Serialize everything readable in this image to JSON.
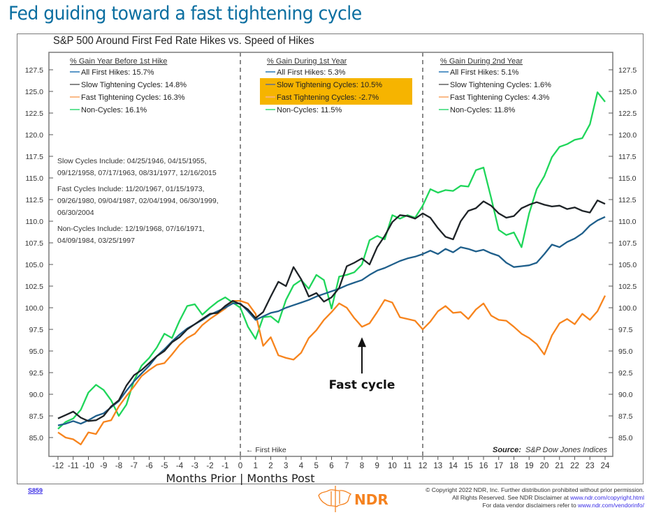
{
  "page": {
    "main_title": "Fed guiding toward a fast tightening cycle",
    "chart_id": "S859",
    "logo_text": "NDR",
    "copyright": {
      "line1": "© Copyright 2022 NDR, Inc. Further distribution prohibited without prior permission.",
      "line2_prefix": "All Rights Reserved. See NDR Disclaimer at ",
      "line2_link": "www.ndr.com/copyright.html",
      "line3_prefix": "For data vendor disclaimers refer to ",
      "line3_link": "www.ndr.com/vendorinfo/"
    }
  },
  "chart_data": {
    "type": "line",
    "title": "S&P 500 Around First Fed Rate Hikes vs. Speed of Hikes",
    "xlabel": "Months Prior | Months Post",
    "ylabel": "",
    "xlim": [
      -12,
      24
    ],
    "ylim": [
      82.5,
      128.5
    ],
    "x_ticks": [
      -12,
      -11,
      -10,
      -9,
      -8,
      -7,
      -6,
      -5,
      -4,
      -3,
      -2,
      -1,
      0,
      1,
      2,
      3,
      4,
      5,
      6,
      7,
      8,
      9,
      10,
      11,
      12,
      13,
      14,
      15,
      16,
      17,
      18,
      19,
      20,
      21,
      22,
      23,
      24
    ],
    "y_ticks": [
      "85.0",
      "87.5",
      "90.0",
      "92.5",
      "95.0",
      "97.5",
      "100.0",
      "102.5",
      "105.0",
      "107.5",
      "110.0",
      "112.5",
      "115.0",
      "117.5",
      "120.0",
      "122.5",
      "125.0",
      "127.5"
    ],
    "y_tick_values": [
      85,
      87.5,
      90,
      92.5,
      95,
      97.5,
      100,
      102.5,
      105,
      107.5,
      110,
      112.5,
      115,
      117.5,
      120,
      122.5,
      125,
      127.5
    ],
    "grid": false,
    "vlines": [
      0,
      12
    ],
    "series_colors": {
      "all": "#1f5f8b",
      "slow": "#1e2327",
      "fast": "#f7841d",
      "non": "#1fd65a"
    },
    "legend_colors": {
      "all": "#4a8cc2",
      "slow": "#7a7a7a",
      "fast": "#f9b37a",
      "non": "#52e08a"
    },
    "legends": [
      {
        "heading": "% Gain Year Before 1st Hike",
        "items": [
          {
            "key": "all",
            "label": "All First Hikes: 15.7%"
          },
          {
            "key": "slow",
            "label": "Slow Tightening Cycles: 14.8%"
          },
          {
            "key": "fast",
            "label": "Fast Tightening Cycles: 16.3%"
          },
          {
            "key": "non",
            "label": "Non-Cycles: 16.1%"
          }
        ]
      },
      {
        "heading": "% Gain During 1st Year",
        "highlight": "#f6b400",
        "items": [
          {
            "key": "all",
            "label": "All First Hikes: 5.3%"
          },
          {
            "key": "slow",
            "label": "Slow Tightening Cycles: 10.5%",
            "highlighted": true
          },
          {
            "key": "fast",
            "label": "Fast Tightening Cycles: -2.7%",
            "highlighted": true
          },
          {
            "key": "non",
            "label": "Non-Cycles: 11.5%"
          }
        ]
      },
      {
        "heading": "% Gain During 2nd Year",
        "items": [
          {
            "key": "all",
            "label": "All First Hikes: 5.1%"
          },
          {
            "key": "slow",
            "label": "Slow Tightening Cycles: 1.6%"
          },
          {
            "key": "fast",
            "label": "Fast Tightening Cycles: 4.3%"
          },
          {
            "key": "non",
            "label": "Non-Cycles: 11.8%"
          }
        ]
      }
    ],
    "notes": [
      [
        "Slow Cycles Include: 04/25/1946, 04/15/1955,",
        "09/12/1958, 07/17/1963, 08/31/1977, 12/16/2015"
      ],
      [
        "Fast Cycles Include: 11/20/1967, 01/15/1973,",
        "09/26/1980, 09/04/1987, 02/04/1994, 06/30/1999,",
        "06/30/2004"
      ],
      [
        "Non-Cycles Include: 12/19/1968, 07/16/1971,",
        "04/09/1984, 03/25/1997"
      ]
    ],
    "annotations": {
      "first_hike": "← First Hike",
      "fast_cycle": "Fast cycle",
      "fast_cycle_x": 8,
      "fast_cycle_y": 97.4,
      "source_label": "Source:",
      "source_value": "S&P Dow Jones Indices"
    },
    "series": [
      {
        "name": "All First Hikes",
        "key": "all",
        "x": [
          -12,
          -11.5,
          -11,
          -10.5,
          -10,
          -9.5,
          -9,
          -8.5,
          -8,
          -7.5,
          -7,
          -6.5,
          -6,
          -5.5,
          -5,
          -4.5,
          -4,
          -3.5,
          -3,
          -2.5,
          -2,
          -1.5,
          -1,
          -0.5,
          0,
          0.5,
          1,
          1.5,
          2,
          2.5,
          3,
          3.5,
          4,
          4.5,
          5,
          5.5,
          6,
          6.5,
          7,
          7.5,
          8,
          8.5,
          9,
          9.5,
          10,
          10.5,
          11,
          11.5,
          12,
          12.5,
          13,
          13.5,
          14,
          14.5,
          15,
          15.5,
          16,
          16.5,
          17,
          17.5,
          18,
          18.5,
          19,
          19.5,
          20,
          20.5,
          21,
          21.5,
          22,
          22.5,
          23,
          23.5,
          24
        ],
        "values": [
          86.4,
          86.6,
          86.9,
          86.6,
          87.0,
          87.5,
          87.8,
          88.5,
          89.2,
          90.4,
          91.5,
          92.4,
          93.3,
          94.4,
          95.2,
          96.1,
          96.9,
          97.6,
          98.1,
          98.6,
          99.2,
          99.6,
          100.0,
          100.5,
          100.5,
          99.6,
          98.6,
          99.0,
          99.4,
          99.6,
          100.0,
          100.3,
          100.6,
          100.9,
          101.3,
          101.6,
          101.9,
          102.2,
          102.6,
          102.9,
          103.2,
          103.8,
          104.3,
          104.6,
          105.0,
          105.4,
          105.7,
          105.9,
          106.2,
          106.6,
          106.2,
          106.8,
          106.4,
          107.0,
          106.8,
          106.5,
          106.7,
          106.3,
          106.0,
          105.2,
          104.7,
          104.8,
          104.9,
          105.2,
          106.2,
          107.3,
          107.0,
          107.6,
          108.0,
          108.6,
          109.5,
          110.1,
          110.5
        ]
      },
      {
        "name": "Slow Tightening Cycles",
        "key": "slow",
        "x": [
          -12,
          -11.5,
          -11,
          -10.5,
          -10,
          -9.5,
          -9,
          -8.5,
          -8,
          -7.5,
          -7,
          -6.5,
          -6,
          -5.5,
          -5,
          -4.5,
          -4,
          -3.5,
          -3,
          -2.5,
          -2,
          -1.5,
          -1,
          -0.5,
          0,
          0.5,
          1,
          1.5,
          2,
          2.5,
          3,
          3.5,
          4,
          4.5,
          5,
          5.5,
          6,
          6.5,
          7,
          7.5,
          8,
          8.5,
          9,
          9.5,
          10,
          10.5,
          11,
          11.5,
          12,
          12.5,
          13,
          13.5,
          14,
          14.5,
          15,
          15.5,
          16,
          16.5,
          17,
          17.5,
          18,
          18.5,
          19,
          19.5,
          20,
          20.5,
          21,
          21.5,
          22,
          22.5,
          23,
          23.5,
          24
        ],
        "values": [
          87.2,
          87.6,
          88.0,
          87.3,
          86.9,
          87.0,
          87.5,
          88.6,
          89.3,
          91.0,
          92.2,
          92.8,
          93.6,
          94.4,
          95.0,
          96.0,
          96.6,
          97.5,
          98.1,
          98.7,
          99.3,
          99.4,
          100.2,
          100.8,
          100.4,
          99.8,
          98.8,
          99.5,
          101.3,
          103.0,
          102.5,
          104.7,
          103.3,
          101.3,
          101.7,
          100.7,
          101.2,
          102.3,
          104.8,
          105.2,
          105.7,
          105.0,
          107.0,
          108.3,
          109.9,
          110.7,
          110.6,
          110.3,
          110.9,
          110.4,
          109.2,
          108.2,
          107.9,
          110.0,
          111.2,
          111.5,
          112.3,
          111.8,
          110.9,
          110.4,
          110.6,
          111.5,
          111.9,
          112.2,
          111.9,
          111.7,
          111.8,
          111.4,
          111.6,
          111.2,
          111.0,
          112.4,
          112.0
        ]
      },
      {
        "name": "Fast Tightening Cycles",
        "key": "fast",
        "x": [
          -12,
          -11.5,
          -11,
          -10.5,
          -10,
          -9.5,
          -9,
          -8.5,
          -8,
          -7.5,
          -7,
          -6.5,
          -6,
          -5.5,
          -5,
          -4.5,
          -4,
          -3.5,
          -3,
          -2.5,
          -2,
          -1.5,
          -1,
          -0.5,
          0,
          0.5,
          1,
          1.5,
          2,
          2.5,
          3,
          3.5,
          4,
          4.5,
          5,
          5.5,
          6,
          6.5,
          7,
          7.5,
          8,
          8.5,
          9,
          9.5,
          10,
          10.5,
          11,
          11.5,
          12,
          12.5,
          13,
          13.5,
          14,
          14.5,
          15,
          15.5,
          16,
          16.5,
          17,
          17.5,
          18,
          18.5,
          19,
          19.5,
          20,
          20.5,
          21,
          21.5,
          22,
          22.5,
          23,
          23.5,
          24
        ],
        "values": [
          85.6,
          85.0,
          84.8,
          84.2,
          85.6,
          85.4,
          86.8,
          87.0,
          88.6,
          89.8,
          90.9,
          92.1,
          92.8,
          93.4,
          93.6,
          94.6,
          95.7,
          96.5,
          97.0,
          98.0,
          98.7,
          99.3,
          99.9,
          100.8,
          100.8,
          100.5,
          99.3,
          95.6,
          96.6,
          94.5,
          94.2,
          94.0,
          94.8,
          96.5,
          97.4,
          98.6,
          99.5,
          100.5,
          100.0,
          98.8,
          97.8,
          98.2,
          99.5,
          100.9,
          100.6,
          98.9,
          98.7,
          98.5,
          97.5,
          98.4,
          99.6,
          100.2,
          99.4,
          99.5,
          98.7,
          99.8,
          100.5,
          99.1,
          98.6,
          98.5,
          97.8,
          97.0,
          96.5,
          95.8,
          94.6,
          96.8,
          98.2,
          98.7,
          98.1,
          99.3,
          98.6,
          99.6,
          101.4
        ]
      },
      {
        "name": "Non-Cycles",
        "key": "non",
        "x": [
          -12,
          -11.5,
          -11,
          -10.5,
          -10,
          -9.5,
          -9,
          -8.5,
          -8,
          -7.5,
          -7,
          -6.5,
          -6,
          -5.5,
          -5,
          -4.5,
          -4,
          -3.5,
          -3,
          -2.5,
          -2,
          -1.5,
          -1,
          -0.5,
          0,
          0.5,
          1,
          1.5,
          2,
          2.5,
          3,
          3.5,
          4,
          4.5,
          5,
          5.5,
          6,
          6.5,
          7,
          7.5,
          8,
          8.5,
          9,
          9.5,
          10,
          10.5,
          11,
          11.5,
          12,
          12.5,
          13,
          13.5,
          14,
          14.5,
          15,
          15.5,
          16,
          16.5,
          17,
          17.5,
          18,
          18.5,
          19,
          19.5,
          20,
          20.5,
          21,
          21.5,
          22,
          22.5,
          23,
          23.5,
          24
        ],
        "values": [
          86.0,
          86.8,
          87.2,
          88.2,
          90.2,
          91.1,
          90.5,
          89.3,
          87.5,
          88.8,
          91.6,
          93.3,
          94.2,
          95.4,
          97.0,
          96.5,
          98.5,
          100.2,
          100.4,
          99.2,
          100.0,
          100.7,
          101.2,
          100.6,
          100.0,
          97.8,
          96.4,
          98.9,
          99.0,
          98.3,
          100.9,
          102.6,
          103.2,
          102.2,
          103.8,
          103.2,
          99.9,
          103.6,
          103.8,
          104.1,
          105.0,
          107.8,
          108.3,
          107.9,
          110.7,
          110.3,
          110.7,
          110.4,
          111.8,
          113.7,
          113.3,
          113.6,
          113.5,
          114.1,
          114.0,
          115.9,
          116.2,
          112.7,
          109.0,
          108.4,
          108.7,
          107.0,
          110.9,
          113.7,
          115.2,
          117.4,
          118.6,
          118.9,
          119.4,
          119.6,
          121.2,
          124.9,
          123.8
        ]
      }
    ]
  }
}
